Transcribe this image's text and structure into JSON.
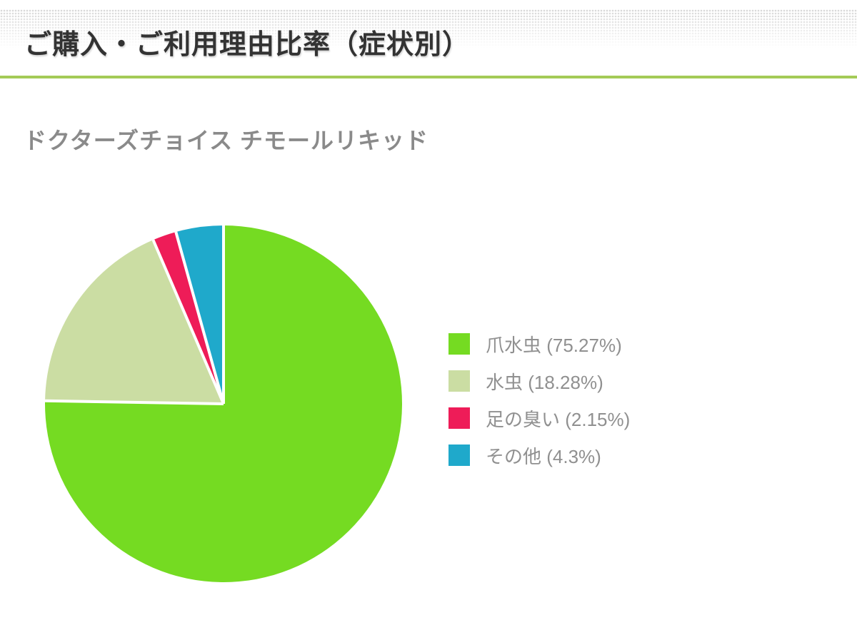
{
  "page": {
    "title": "ご購入・ご利用理由比率（症状別）",
    "subtitle": "ドクターズチョイス チモールリキッド"
  },
  "colors": {
    "accent_line": "#a4cb57",
    "title_text": "#333333",
    "subtitle_text": "#8a8a8a",
    "legend_text": "#909090",
    "background": "#ffffff",
    "header_pattern_dot": "#d7d7d7"
  },
  "chart_data": {
    "type": "pie",
    "title": "ご購入・ご利用理由比率（症状別）",
    "subtitle": "ドクターズチョイス チモールリキッド",
    "categories": [
      "爪水虫",
      "水虫",
      "足の臭い",
      "その他"
    ],
    "values": [
      75.27,
      18.28,
      2.15,
      4.3
    ],
    "unit": "%",
    "colors": [
      "#75db22",
      "#cbdda3",
      "#ee1c58",
      "#1fa9cb"
    ],
    "separator_color": "#ffffff",
    "separator_width": 4,
    "start_angle_deg": 0,
    "direction": "clockwise",
    "legend_position": "right",
    "legend_labels": [
      "爪水虫 (75.27%)",
      "水虫 (18.28%)",
      "足の臭い (2.15%)",
      "その他 (4.3%)"
    ]
  }
}
